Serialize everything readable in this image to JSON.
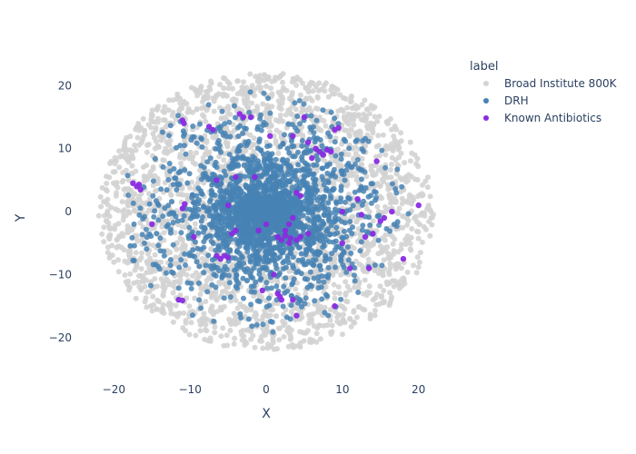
{
  "chart_data": {
    "type": "scatter",
    "xlabel": "X",
    "ylabel": "Y",
    "xlim": [
      -23.5,
      23.5
    ],
    "ylim": [
      -25.5,
      23.5
    ],
    "x_ticks": [
      -20,
      -10,
      0,
      10,
      20
    ],
    "y_ticks": [
      -20,
      -10,
      0,
      10,
      20
    ],
    "grid": false,
    "legend": {
      "title": "label",
      "placement": "top-right"
    },
    "series": [
      {
        "name": "Broad Institute 800K",
        "color": "#d3d3d3",
        "distribution": {
          "center": [
            0,
            0
          ],
          "radius_x": 22,
          "radius_y": 22,
          "count": 2600
        }
      },
      {
        "name": "DRH",
        "color": "#4682b4",
        "distribution": {
          "center": [
            0,
            0
          ],
          "radius_x": 19,
          "radius_y": 19,
          "count": 2400
        }
      },
      {
        "name": "Known Antibiotics",
        "color": "#8a2be2",
        "points": [
          [
            -17.5,
            4.5
          ],
          [
            -17,
            4
          ],
          [
            -16.7,
            4.3
          ],
          [
            -16.5,
            3.5
          ],
          [
            -15,
            -2
          ],
          [
            -11.5,
            -14
          ],
          [
            -11,
            -14.1
          ],
          [
            -11,
            14.5
          ],
          [
            -10.8,
            14
          ],
          [
            -11,
            0.5
          ],
          [
            -10.7,
            1.2
          ],
          [
            -9.5,
            -4
          ],
          [
            -7.5,
            13.5
          ],
          [
            -7,
            13
          ],
          [
            -6.5,
            5
          ],
          [
            -6.5,
            -7
          ],
          [
            -6,
            -7.5
          ],
          [
            -5.5,
            -7
          ],
          [
            -5,
            -7.3
          ],
          [
            -5,
            1
          ],
          [
            -4.5,
            -3.5
          ],
          [
            -4,
            5.5
          ],
          [
            -4,
            -3
          ],
          [
            -3.5,
            15.5
          ],
          [
            -3,
            15
          ],
          [
            -2,
            15
          ],
          [
            -1.5,
            5.5
          ],
          [
            -1,
            -3
          ],
          [
            -0.5,
            -12.5
          ],
          [
            0,
            -2
          ],
          [
            0.5,
            12
          ],
          [
            1,
            -10
          ],
          [
            1.5,
            -4
          ],
          [
            1.5,
            -13
          ],
          [
            1.8,
            -13.5
          ],
          [
            2,
            -14
          ],
          [
            2,
            -4.5
          ],
          [
            2.5,
            -3
          ],
          [
            2.5,
            -3.8
          ],
          [
            3,
            -2
          ],
          [
            3,
            -5
          ],
          [
            3.2,
            -4.2
          ],
          [
            3.5,
            -1
          ],
          [
            3.5,
            -14
          ],
          [
            3.5,
            12
          ],
          [
            4,
            -4.5
          ],
          [
            4,
            3
          ],
          [
            4,
            -16.5
          ],
          [
            4.5,
            2.5
          ],
          [
            4.5,
            -4
          ],
          [
            5,
            15
          ],
          [
            5.5,
            -3.5
          ],
          [
            5.5,
            11
          ],
          [
            6,
            8.5
          ],
          [
            6.5,
            10
          ],
          [
            7,
            9.5
          ],
          [
            7.5,
            9
          ],
          [
            8,
            9.8
          ],
          [
            8.5,
            9.5
          ],
          [
            9,
            -15
          ],
          [
            9,
            13
          ],
          [
            9.5,
            13.3
          ],
          [
            10,
            0
          ],
          [
            10,
            -5
          ],
          [
            11,
            -9
          ],
          [
            12,
            2
          ],
          [
            12.5,
            -0.5
          ],
          [
            13,
            -4
          ],
          [
            13.5,
            -9
          ],
          [
            14,
            -3.5
          ],
          [
            14.5,
            8
          ],
          [
            15,
            -1.5
          ],
          [
            15.5,
            -1
          ],
          [
            16.5,
            0
          ],
          [
            18,
            -7.5
          ],
          [
            20,
            1
          ]
        ]
      }
    ]
  }
}
